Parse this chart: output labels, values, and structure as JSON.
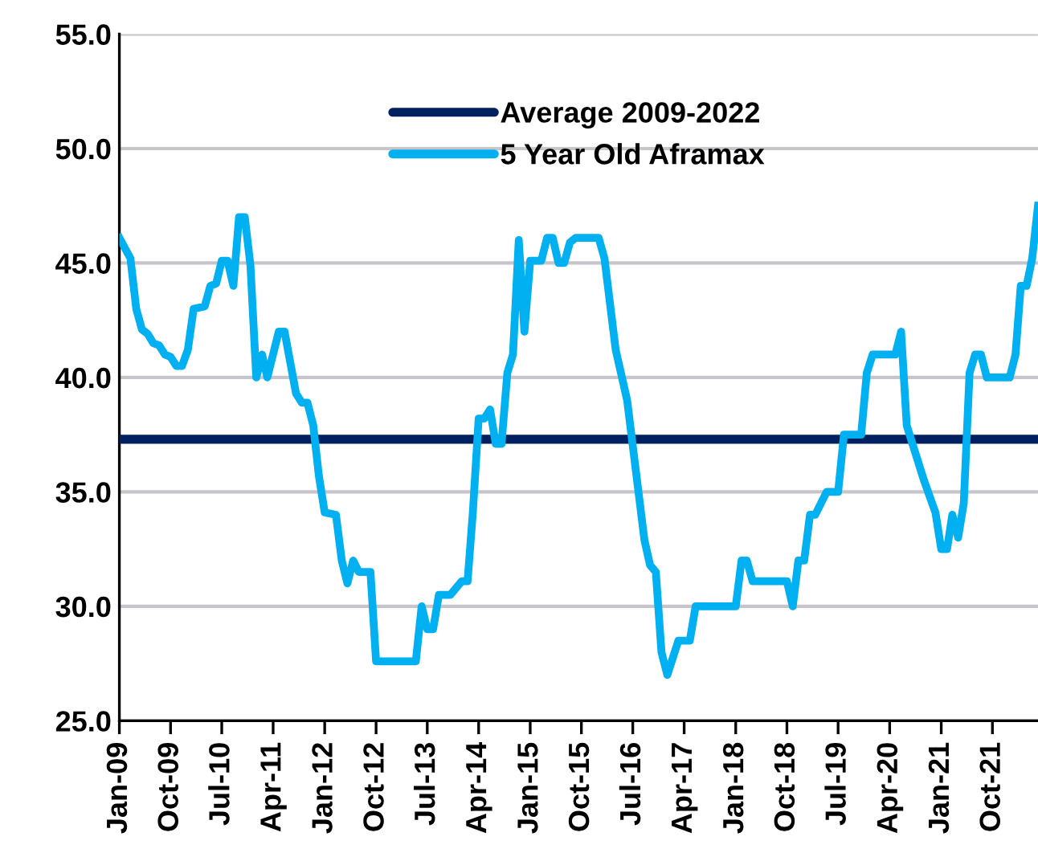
{
  "chart_data": {
    "type": "line",
    "x": [
      "2009-01",
      "2009-03",
      "2009-04",
      "2009-05",
      "2009-06",
      "2009-07",
      "2009-08",
      "2009-09",
      "2009-10",
      "2009-11",
      "2009-12",
      "2010-01",
      "2010-02",
      "2010-04",
      "2010-05",
      "2010-06",
      "2010-07",
      "2010-08",
      "2010-09",
      "2010-10",
      "2010-11",
      "2010-12",
      "2011-01",
      "2011-02",
      "2011-03",
      "2011-05",
      "2011-06",
      "2011-08",
      "2011-09",
      "2011-10",
      "2011-11",
      "2011-12",
      "2012-01",
      "2012-03",
      "2012-04",
      "2012-05",
      "2012-06",
      "2012-07",
      "2012-09",
      "2012-10",
      "2013-05",
      "2013-06",
      "2013-07",
      "2013-08",
      "2013-09",
      "2013-11",
      "2014-01",
      "2014-02",
      "2014-03",
      "2014-04",
      "2014-05",
      "2014-06",
      "2014-07",
      "2014-08",
      "2014-09",
      "2014-10",
      "2014-11",
      "2014-12",
      "2015-01",
      "2015-03",
      "2015-04",
      "2015-05",
      "2015-06",
      "2015-07",
      "2015-08",
      "2015-09",
      "2016-01",
      "2016-02",
      "2016-04",
      "2016-06",
      "2016-09",
      "2016-10",
      "2016-11",
      "2016-12",
      "2017-01",
      "2017-03",
      "2017-05",
      "2017-06",
      "2018-01",
      "2018-02",
      "2018-03",
      "2018-04",
      "2018-10",
      "2018-11",
      "2018-12",
      "2019-01",
      "2019-02",
      "2019-03",
      "2019-05",
      "2019-07",
      "2019-08",
      "2019-11",
      "2019-12",
      "2020-01",
      "2020-05",
      "2020-06",
      "2020-07",
      "2020-10",
      "2020-12",
      "2021-01",
      "2021-02",
      "2021-03",
      "2021-04",
      "2021-05",
      "2021-06",
      "2021-07",
      "2021-08",
      "2021-09",
      "2022-01",
      "2022-02",
      "2022-03",
      "2022-04",
      "2022-05",
      "2022-06"
    ],
    "series": [
      {
        "name": "5 Year Old Aframax",
        "color": "#00b0f0",
        "values": [
          46.1,
          45.2,
          43.0,
          42.1,
          41.9,
          41.5,
          41.4,
          41.0,
          40.9,
          40.5,
          40.5,
          41.2,
          43.0,
          43.1,
          44.0,
          44.1,
          45.1,
          45.1,
          44.0,
          47.0,
          47.0,
          44.9,
          40.0,
          41.0,
          40.0,
          42.0,
          42.0,
          39.3,
          38.9,
          38.9,
          37.9,
          35.7,
          34.1,
          34.0,
          32.0,
          31.0,
          32.0,
          31.5,
          31.5,
          27.6,
          27.6,
          30.0,
          29.0,
          29.0,
          30.5,
          30.5,
          31.1,
          31.1,
          34.1,
          38.2,
          38.2,
          38.6,
          37.1,
          37.1,
          40.2,
          41.0,
          46.0,
          42.0,
          45.1,
          45.1,
          46.1,
          46.1,
          45.0,
          45.0,
          45.9,
          46.1,
          46.1,
          45.2,
          41.2,
          39.0,
          32.9,
          31.8,
          31.5,
          28.0,
          27.0,
          28.5,
          28.5,
          30.0,
          30.0,
          32.0,
          32.0,
          31.1,
          31.1,
          30.0,
          32.0,
          32.0,
          34.0,
          34.0,
          35.0,
          35.0,
          37.5,
          37.5,
          40.2,
          41.0,
          41.0,
          42.0,
          37.9,
          35.5,
          34.1,
          32.5,
          32.5,
          34.0,
          33.0,
          34.5,
          40.2,
          41.0,
          41.0,
          40.0,
          40.0,
          41.0,
          44.0,
          44.0,
          45.2,
          47.5
        ]
      }
    ],
    "ref_lines": [
      {
        "axis": "y",
        "value": 37.3,
        "label": "Average 2009-2022",
        "color": "#002060",
        "line_style": "solid"
      }
    ],
    "xlim": [
      "2009-01",
      "2022-06"
    ],
    "xticks": [
      {
        "value": "2009-01",
        "label": "Jan-09"
      },
      {
        "value": "2009-10",
        "label": "Oct-09"
      },
      {
        "value": "2010-07",
        "label": "Jul-10"
      },
      {
        "value": "2011-04",
        "label": "Apr-11"
      },
      {
        "value": "2012-01",
        "label": "Jan-12"
      },
      {
        "value": "2012-10",
        "label": "Oct-12"
      },
      {
        "value": "2013-07",
        "label": "Jul-13"
      },
      {
        "value": "2014-04",
        "label": "Apr-14"
      },
      {
        "value": "2015-01",
        "label": "Jan-15"
      },
      {
        "value": "2015-10",
        "label": "Oct-15"
      },
      {
        "value": "2016-07",
        "label": "Jul-16"
      },
      {
        "value": "2017-04",
        "label": "Apr-17"
      },
      {
        "value": "2018-01",
        "label": "Jan-18"
      },
      {
        "value": "2018-10",
        "label": "Oct-18"
      },
      {
        "value": "2019-07",
        "label": "Jul-19"
      },
      {
        "value": "2020-04",
        "label": "Apr-20"
      },
      {
        "value": "2021-01",
        "label": "Jan-21"
      },
      {
        "value": "2021-10",
        "label": "Oct-21"
      }
    ],
    "ylim": [
      25,
      55
    ],
    "yticks": [
      {
        "value": 25,
        "label": "25.0"
      },
      {
        "value": 30,
        "label": "30.0"
      },
      {
        "value": 35,
        "label": "35.0"
      },
      {
        "value": 40,
        "label": "40.0"
      },
      {
        "value": 45,
        "label": "45.0"
      },
      {
        "value": 50,
        "label": "50.0"
      },
      {
        "value": 55,
        "label": "55.0"
      }
    ],
    "grid": "y",
    "legend": "top",
    "marker": "none",
    "line_style": "solid"
  }
}
